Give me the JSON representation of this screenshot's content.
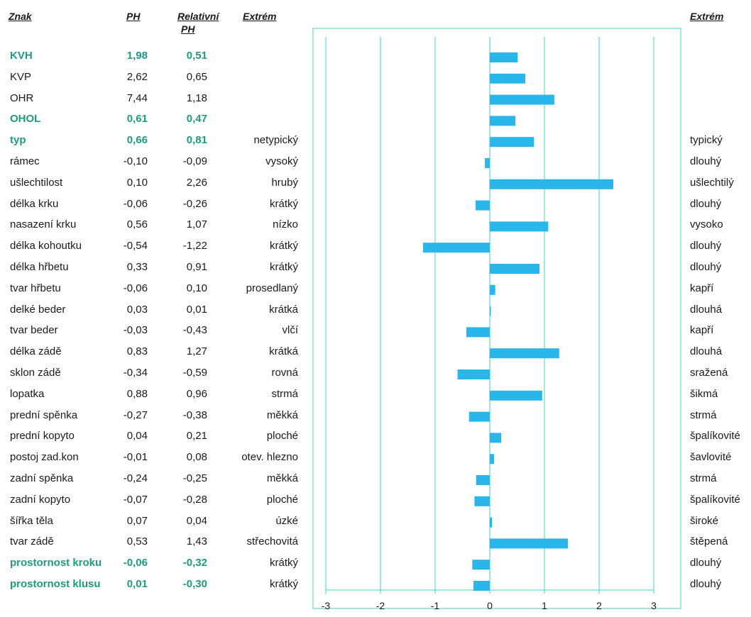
{
  "headers": {
    "znak": "Znak",
    "ph": "PH",
    "rel1": "Relativní",
    "rel2": "PH",
    "extrem_left": "Extrém",
    "extrem_right": "Extrém"
  },
  "colors": {
    "bar": "#29b6ea",
    "frame": "#40d0d0",
    "highlight": "#1f9a7f",
    "text": "#1a1a1a"
  },
  "chart_data": {
    "type": "bar",
    "orientation": "horizontal",
    "xlim": [
      -3,
      3
    ],
    "xticks": [
      "-3",
      "-2",
      "-1",
      "0",
      "1",
      "2",
      "3"
    ],
    "grid": true,
    "categories": [
      "KVH",
      "KVP",
      "OHR",
      "OHOL",
      "typ",
      "rámec",
      "ušlechtilost",
      "délka krku",
      "nasazení krku",
      "délka kohoutku",
      "délka hřbetu",
      "tvar hřbetu",
      "delké beder",
      "tvar beder",
      "délka zádě",
      "sklon zádě",
      "lopatka",
      "prední spěnka",
      "prední kopyto",
      "postoj zad.kon",
      "zadní spěnka",
      "zadní kopyto",
      "šířka těla",
      "tvar zádě",
      "prostornost kroku",
      "prostornost klusu"
    ],
    "values": [
      0.51,
      0.65,
      1.18,
      0.47,
      0.81,
      -0.09,
      2.26,
      -0.26,
      1.07,
      -1.22,
      0.91,
      0.1,
      0.01,
      -0.43,
      1.27,
      -0.59,
      0.96,
      -0.38,
      0.21,
      0.08,
      -0.25,
      -0.28,
      0.04,
      1.43,
      -0.32,
      -0.3
    ]
  },
  "rows": [
    {
      "name": "KVH",
      "ph": "1,98",
      "rel": "0,51",
      "left": "",
      "right": "",
      "hl": true
    },
    {
      "name": "KVP",
      "ph": "2,62",
      "rel": "0,65",
      "left": "",
      "right": "",
      "hl": false
    },
    {
      "name": "OHR",
      "ph": "7,44",
      "rel": "1,18",
      "left": "",
      "right": "",
      "hl": false
    },
    {
      "name": "OHOL",
      "ph": "0,61",
      "rel": "0,47",
      "left": "",
      "right": "",
      "hl": true
    },
    {
      "name": "typ",
      "ph": "0,66",
      "rel": "0,81",
      "left": "netypický",
      "right": "typický",
      "hl": true
    },
    {
      "name": "rámec",
      "ph": "-0,10",
      "rel": "-0,09",
      "left": "vysoký",
      "right": "dlouhý",
      "hl": false
    },
    {
      "name": "ušlechtilost",
      "ph": "0,10",
      "rel": "2,26",
      "left": "hrubý",
      "right": "ušlechtilý",
      "hl": false
    },
    {
      "name": "délka krku",
      "ph": "-0,06",
      "rel": "-0,26",
      "left": "krátký",
      "right": "dlouhý",
      "hl": false
    },
    {
      "name": "nasazení krku",
      "ph": "0,56",
      "rel": "1,07",
      "left": "nízko",
      "right": "vysoko",
      "hl": false
    },
    {
      "name": "délka kohoutku",
      "ph": "-0,54",
      "rel": "-1,22",
      "left": "krátký",
      "right": "dlouhý",
      "hl": false
    },
    {
      "name": "délka hřbetu",
      "ph": "0,33",
      "rel": "0,91",
      "left": "krátký",
      "right": "dlouhý",
      "hl": false
    },
    {
      "name": "tvar hřbetu",
      "ph": "-0,06",
      "rel": "0,10",
      "left": "prosedlaný",
      "right": "kapří",
      "hl": false
    },
    {
      "name": "delké beder",
      "ph": "0,03",
      "rel": "0,01",
      "left": "krátká",
      "right": "dlouhá",
      "hl": false
    },
    {
      "name": "tvar beder",
      "ph": "-0,03",
      "rel": "-0,43",
      "left": "vlčí",
      "right": "kapří",
      "hl": false
    },
    {
      "name": "délka zádě",
      "ph": "0,83",
      "rel": "1,27",
      "left": "krátká",
      "right": "dlouhá",
      "hl": false
    },
    {
      "name": "sklon zádě",
      "ph": "-0,34",
      "rel": "-0,59",
      "left": "rovná",
      "right": "sražená",
      "hl": false
    },
    {
      "name": "lopatka",
      "ph": "0,88",
      "rel": "0,96",
      "left": "strmá",
      "right": "šikmá",
      "hl": false
    },
    {
      "name": "prední spěnka",
      "ph": "-0,27",
      "rel": "-0,38",
      "left": "měkká",
      "right": "strmá",
      "hl": false
    },
    {
      "name": "prední kopyto",
      "ph": "0,04",
      "rel": "0,21",
      "left": "ploché",
      "right": "špalíkovité",
      "hl": false
    },
    {
      "name": "postoj zad.kon",
      "ph": "-0,01",
      "rel": "0,08",
      "left": "otev. hlezno",
      "right": "šavlovité",
      "hl": false
    },
    {
      "name": "zadní spěnka",
      "ph": "-0,24",
      "rel": "-0,25",
      "left": "měkká",
      "right": "strmá",
      "hl": false
    },
    {
      "name": "zadní kopyto",
      "ph": "-0,07",
      "rel": "-0,28",
      "left": "ploché",
      "right": "špalíkovité",
      "hl": false
    },
    {
      "name": "šířka těla",
      "ph": "0,07",
      "rel": "0,04",
      "left": "úzké",
      "right": "široké",
      "hl": false
    },
    {
      "name": "tvar zádě",
      "ph": "0,53",
      "rel": "1,43",
      "left": "střechovitá",
      "right": "štěpená",
      "hl": false
    },
    {
      "name": "prostornost kroku",
      "ph": "-0,06",
      "rel": "-0,32",
      "left": "krátký",
      "right": "dlouhý",
      "hl": true
    },
    {
      "name": "prostornost klusu",
      "ph": "0,01",
      "rel": "-0,30",
      "left": "krátký",
      "right": "dlouhý",
      "hl": true
    }
  ]
}
